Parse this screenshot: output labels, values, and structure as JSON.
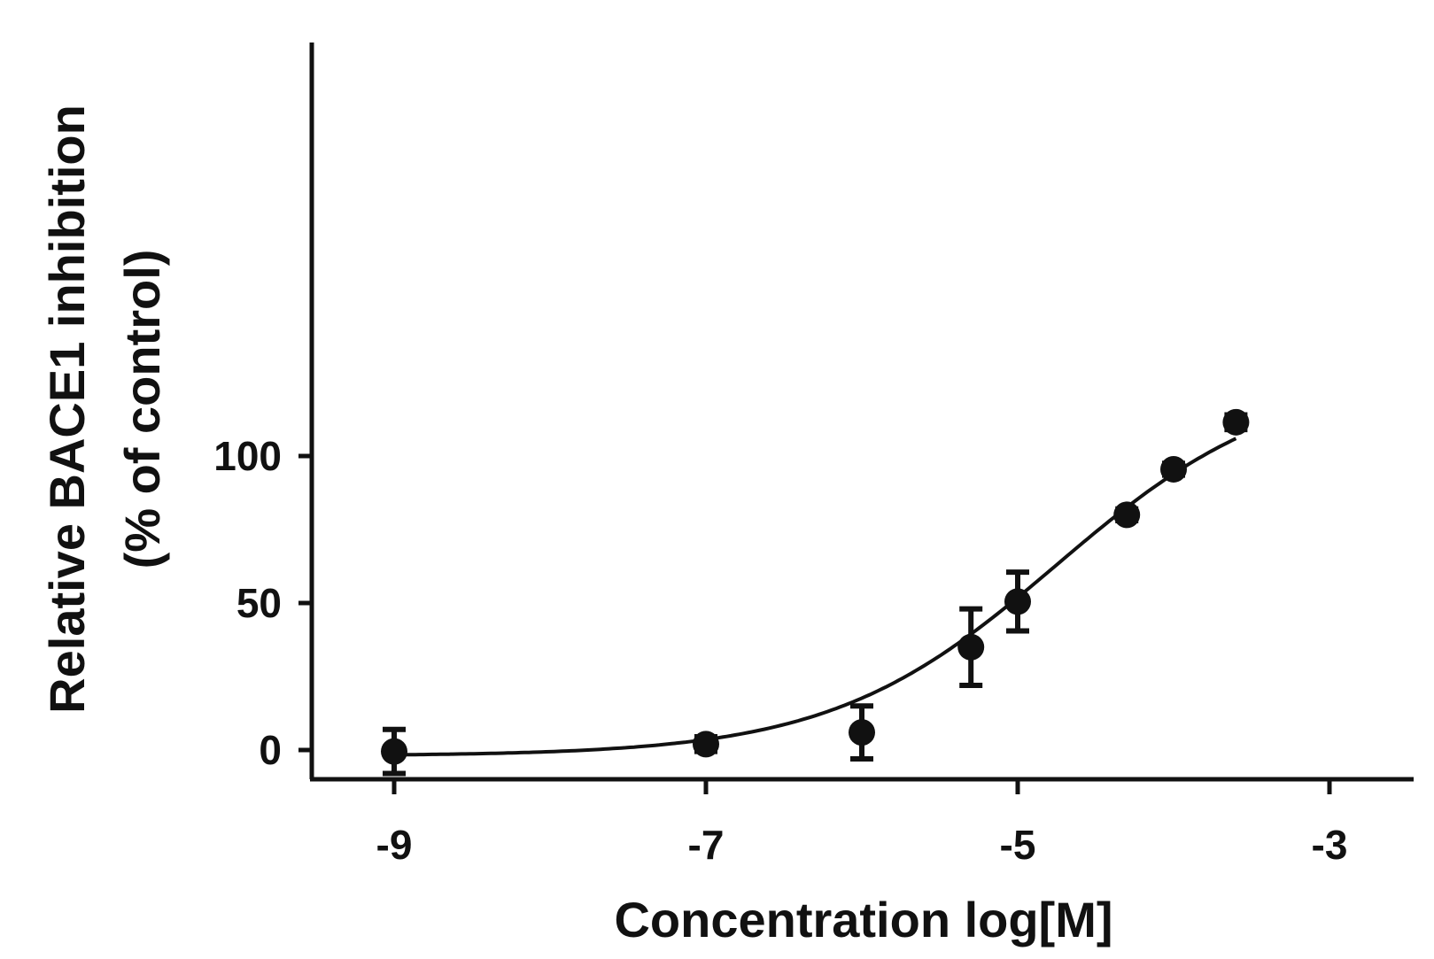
{
  "chart_data": {
    "type": "scatter",
    "xlabel": "Concentration log[M]",
    "ylabel": [
      "Relative BACE1 inhibition",
      "(% of control)"
    ],
    "x_ticks": [
      -9,
      -7,
      -5,
      -3
    ],
    "y_ticks": [
      0,
      50,
      100
    ],
    "xlim": [
      -9.5,
      -2.5
    ],
    "ylim": [
      -5,
      120
    ],
    "grid": false,
    "series": [
      {
        "points": [
          {
            "x": -9.0,
            "y": -0.5,
            "err": 7.5
          },
          {
            "x": -7.0,
            "y": 2.0,
            "err": 2.5
          },
          {
            "x": -6.0,
            "y": 6.0,
            "err": 9.0
          },
          {
            "x": -5.3,
            "y": 35.0,
            "err": 13.0
          },
          {
            "x": -5.0,
            "y": 50.5,
            "err": 10.0
          },
          {
            "x": -4.3,
            "y": 80.0,
            "err": 2.0
          },
          {
            "x": -4.0,
            "y": 95.5,
            "err": 2.0
          },
          {
            "x": -3.6,
            "y": 111.5,
            "err": 2.5
          }
        ],
        "fit": {
          "model": "four-parameter logistic",
          "bottom": -2,
          "top": 128,
          "logIC50": -4.75,
          "hill": 0.6
        }
      }
    ]
  }
}
